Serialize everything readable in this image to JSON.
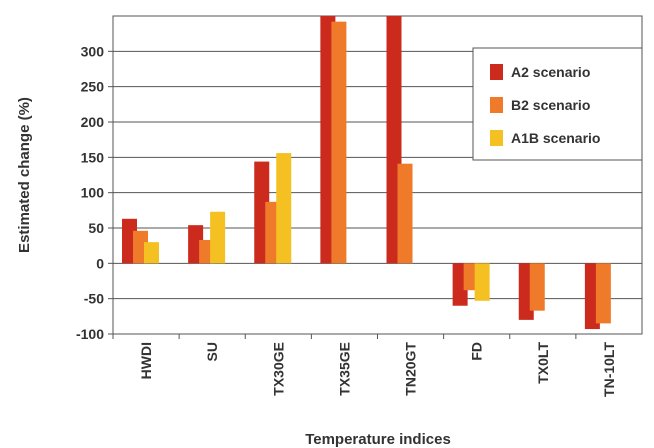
{
  "chart_data": {
    "type": "bar",
    "title": "",
    "xlabel": "Temperature indices",
    "ylabel": "Estimated change (%)",
    "categories": [
      "HWDI",
      "SU",
      "TX30GE",
      "TX35GE",
      "TN20GT",
      "FD",
      "TX0LT",
      "TN-10LT"
    ],
    "series": [
      {
        "name": "A2 scenario",
        "color": "#cc2a1c",
        "values": [
          63,
          54,
          144,
          350,
          350,
          -60,
          -80,
          -93
        ]
      },
      {
        "name": "B2 scenario",
        "color": "#ee7a2a",
        "values": [
          46,
          33,
          87,
          342,
          141,
          -38,
          -67,
          -85
        ]
      },
      {
        "name": "A1B scenario",
        "color": "#f5c122",
        "values": [
          30,
          73,
          156,
          null,
          null,
          -53,
          null,
          null
        ]
      }
    ],
    "ylim": [
      -100,
      350
    ],
    "yticks": [
      -100,
      -50,
      0,
      50,
      100,
      150,
      200,
      250,
      300
    ],
    "grid": true,
    "legend_position": "top-right"
  }
}
